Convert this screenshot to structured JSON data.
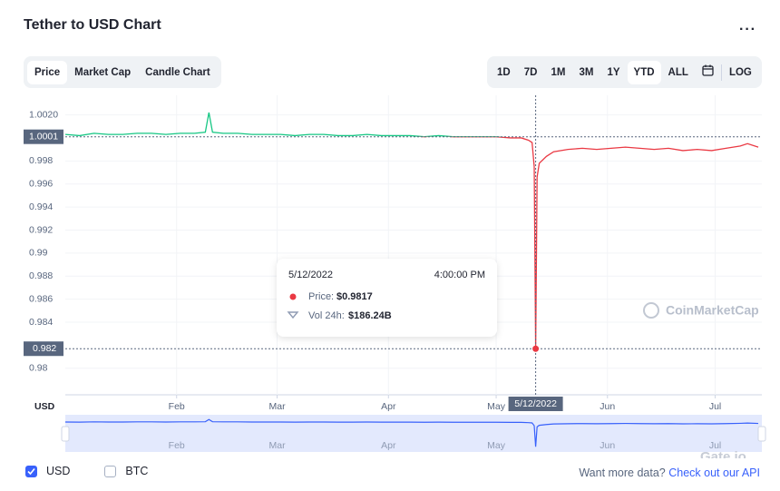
{
  "header": {
    "title": "Tether to USD Chart"
  },
  "tabs": [
    "Price",
    "Market Cap",
    "Candle Chart"
  ],
  "ranges": [
    "1D",
    "7D",
    "1M",
    "3M",
    "1Y",
    "YTD",
    "ALL"
  ],
  "log_button": "LOG",
  "chart_data": {
    "type": "line",
    "currency_label": "USD",
    "x": [
      0,
      4,
      8,
      12,
      16,
      20,
      24,
      28,
      32,
      36,
      39,
      40,
      41,
      44,
      48,
      52,
      56,
      60,
      64,
      68,
      72,
      76,
      80,
      84,
      88,
      92,
      96,
      100,
      104,
      108,
      112,
      116,
      120,
      124,
      127,
      129,
      130,
      130.6,
      131,
      131.4,
      132,
      134,
      136,
      140,
      144,
      148,
      152,
      156,
      160,
      164,
      168,
      172,
      176,
      180,
      184,
      188,
      190,
      193
    ],
    "series": [
      {
        "color": "#16c784",
        "down_color": "#ea3943",
        "values": [
          1.0003,
          1.0002,
          1.0004,
          1.0003,
          1.0003,
          1.0004,
          1.0004,
          1.0003,
          1.0004,
          1.0004,
          1.0005,
          1.0022,
          1.0005,
          1.0004,
          1.0004,
          1.0003,
          1.0003,
          1.0003,
          1.0002,
          1.0003,
          1.0003,
          1.0002,
          1.0002,
          1.0003,
          1.0002,
          1.0002,
          1.0002,
          1.0001,
          1.0002,
          1.0001,
          1.0001,
          1.0001,
          1.0001,
          1.0,
          1.0,
          0.9998,
          0.9996,
          0.9975,
          0.9817,
          0.9966,
          0.9978,
          0.9984,
          0.9988,
          0.999,
          0.9991,
          0.999,
          0.9991,
          0.9992,
          0.9991,
          0.999,
          0.9991,
          0.9989,
          0.999,
          0.9989,
          0.9991,
          0.9993,
          0.9995,
          0.9992
        ]
      }
    ],
    "baseline": {
      "value": 1.0001,
      "label": "1.0001"
    },
    "xlim": [
      0,
      194
    ],
    "xticks": [
      {
        "value": 31,
        "label": "Feb"
      },
      {
        "value": 59,
        "label": "Mar"
      },
      {
        "value": 90,
        "label": "Apr"
      },
      {
        "value": 120,
        "label": "May"
      },
      {
        "value": 151,
        "label": "Jun"
      },
      {
        "value": 181,
        "label": "Jul"
      }
    ],
    "ylim": [
      0.9777,
      1.0037
    ],
    "yticks": [
      {
        "value": 1.002,
        "label": "1.0020"
      },
      0.998,
      0.996,
      0.994,
      0.992,
      0.99,
      0.988,
      0.986,
      0.984,
      0.98
    ],
    "grid": true,
    "navigator_color": "#3861fb",
    "crosshair": {
      "x": 131,
      "x_label": "5/12/2022",
      "y": 0.9817,
      "y_label": "0.982"
    },
    "tooltip": {
      "date": "5/12/2022",
      "time": "4:00:00 PM",
      "price_label": "Price:",
      "price": "$0.9817",
      "volume_label": "Vol 24h:",
      "volume": "$186.24B"
    },
    "watermark": "CoinMarketCap"
  },
  "footer": {
    "options": [
      "USD",
      "BTC"
    ],
    "prompt": "Want more data?",
    "link": "Check out our API"
  },
  "logo": "Gate.io"
}
